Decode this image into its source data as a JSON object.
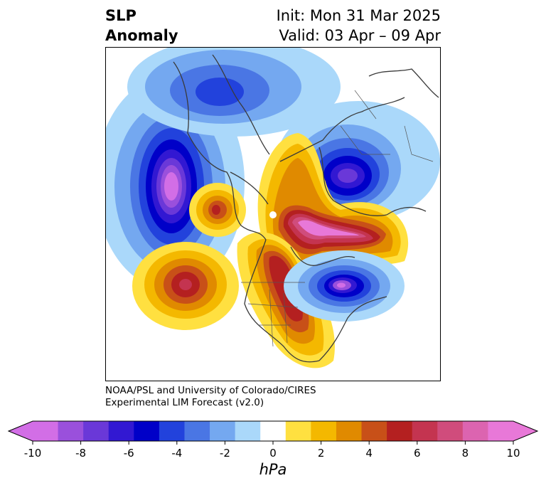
{
  "header": {
    "title_line1": "SLP",
    "title_line2": "Anomaly",
    "init_line": "Init: Mon 31 Mar 2025",
    "valid_line": "Valid: 03 Apr – 09 Apr"
  },
  "credit": {
    "line1": "NOAA/PSL and University of Colorado/CIRES",
    "line2": "Experimental LIM Forecast (v2.0)"
  },
  "colorbar": {
    "levels": [
      -10,
      -9,
      -8,
      -7,
      -6,
      -5,
      -4,
      -3,
      -2,
      -1,
      1,
      2,
      3,
      4,
      5,
      6,
      7,
      8,
      9,
      10
    ],
    "colors": [
      "#d26ee6",
      "#9a50dc",
      "#6a38d8",
      "#3218d2",
      "#0000c8",
      "#2242dc",
      "#4a76e4",
      "#74a8f0",
      "#aad8fa",
      "#ffffff",
      "#ffe040",
      "#f4b800",
      "#e08a00",
      "#c85018",
      "#b42020",
      "#c43450",
      "#d04c7c",
      "#dc64b0",
      "#e878d8"
    ],
    "under_color": "#d26ee6",
    "over_color": "#e878d8",
    "tick_labels": [
      "-10",
      "-8",
      "-6",
      "-4",
      "-2",
      "0",
      "2",
      "4",
      "6",
      "8",
      "10"
    ],
    "units": "hPa"
  },
  "map": {
    "projection": "north-polar-stereographic",
    "variable": "sea-level-pressure-anomaly"
  }
}
